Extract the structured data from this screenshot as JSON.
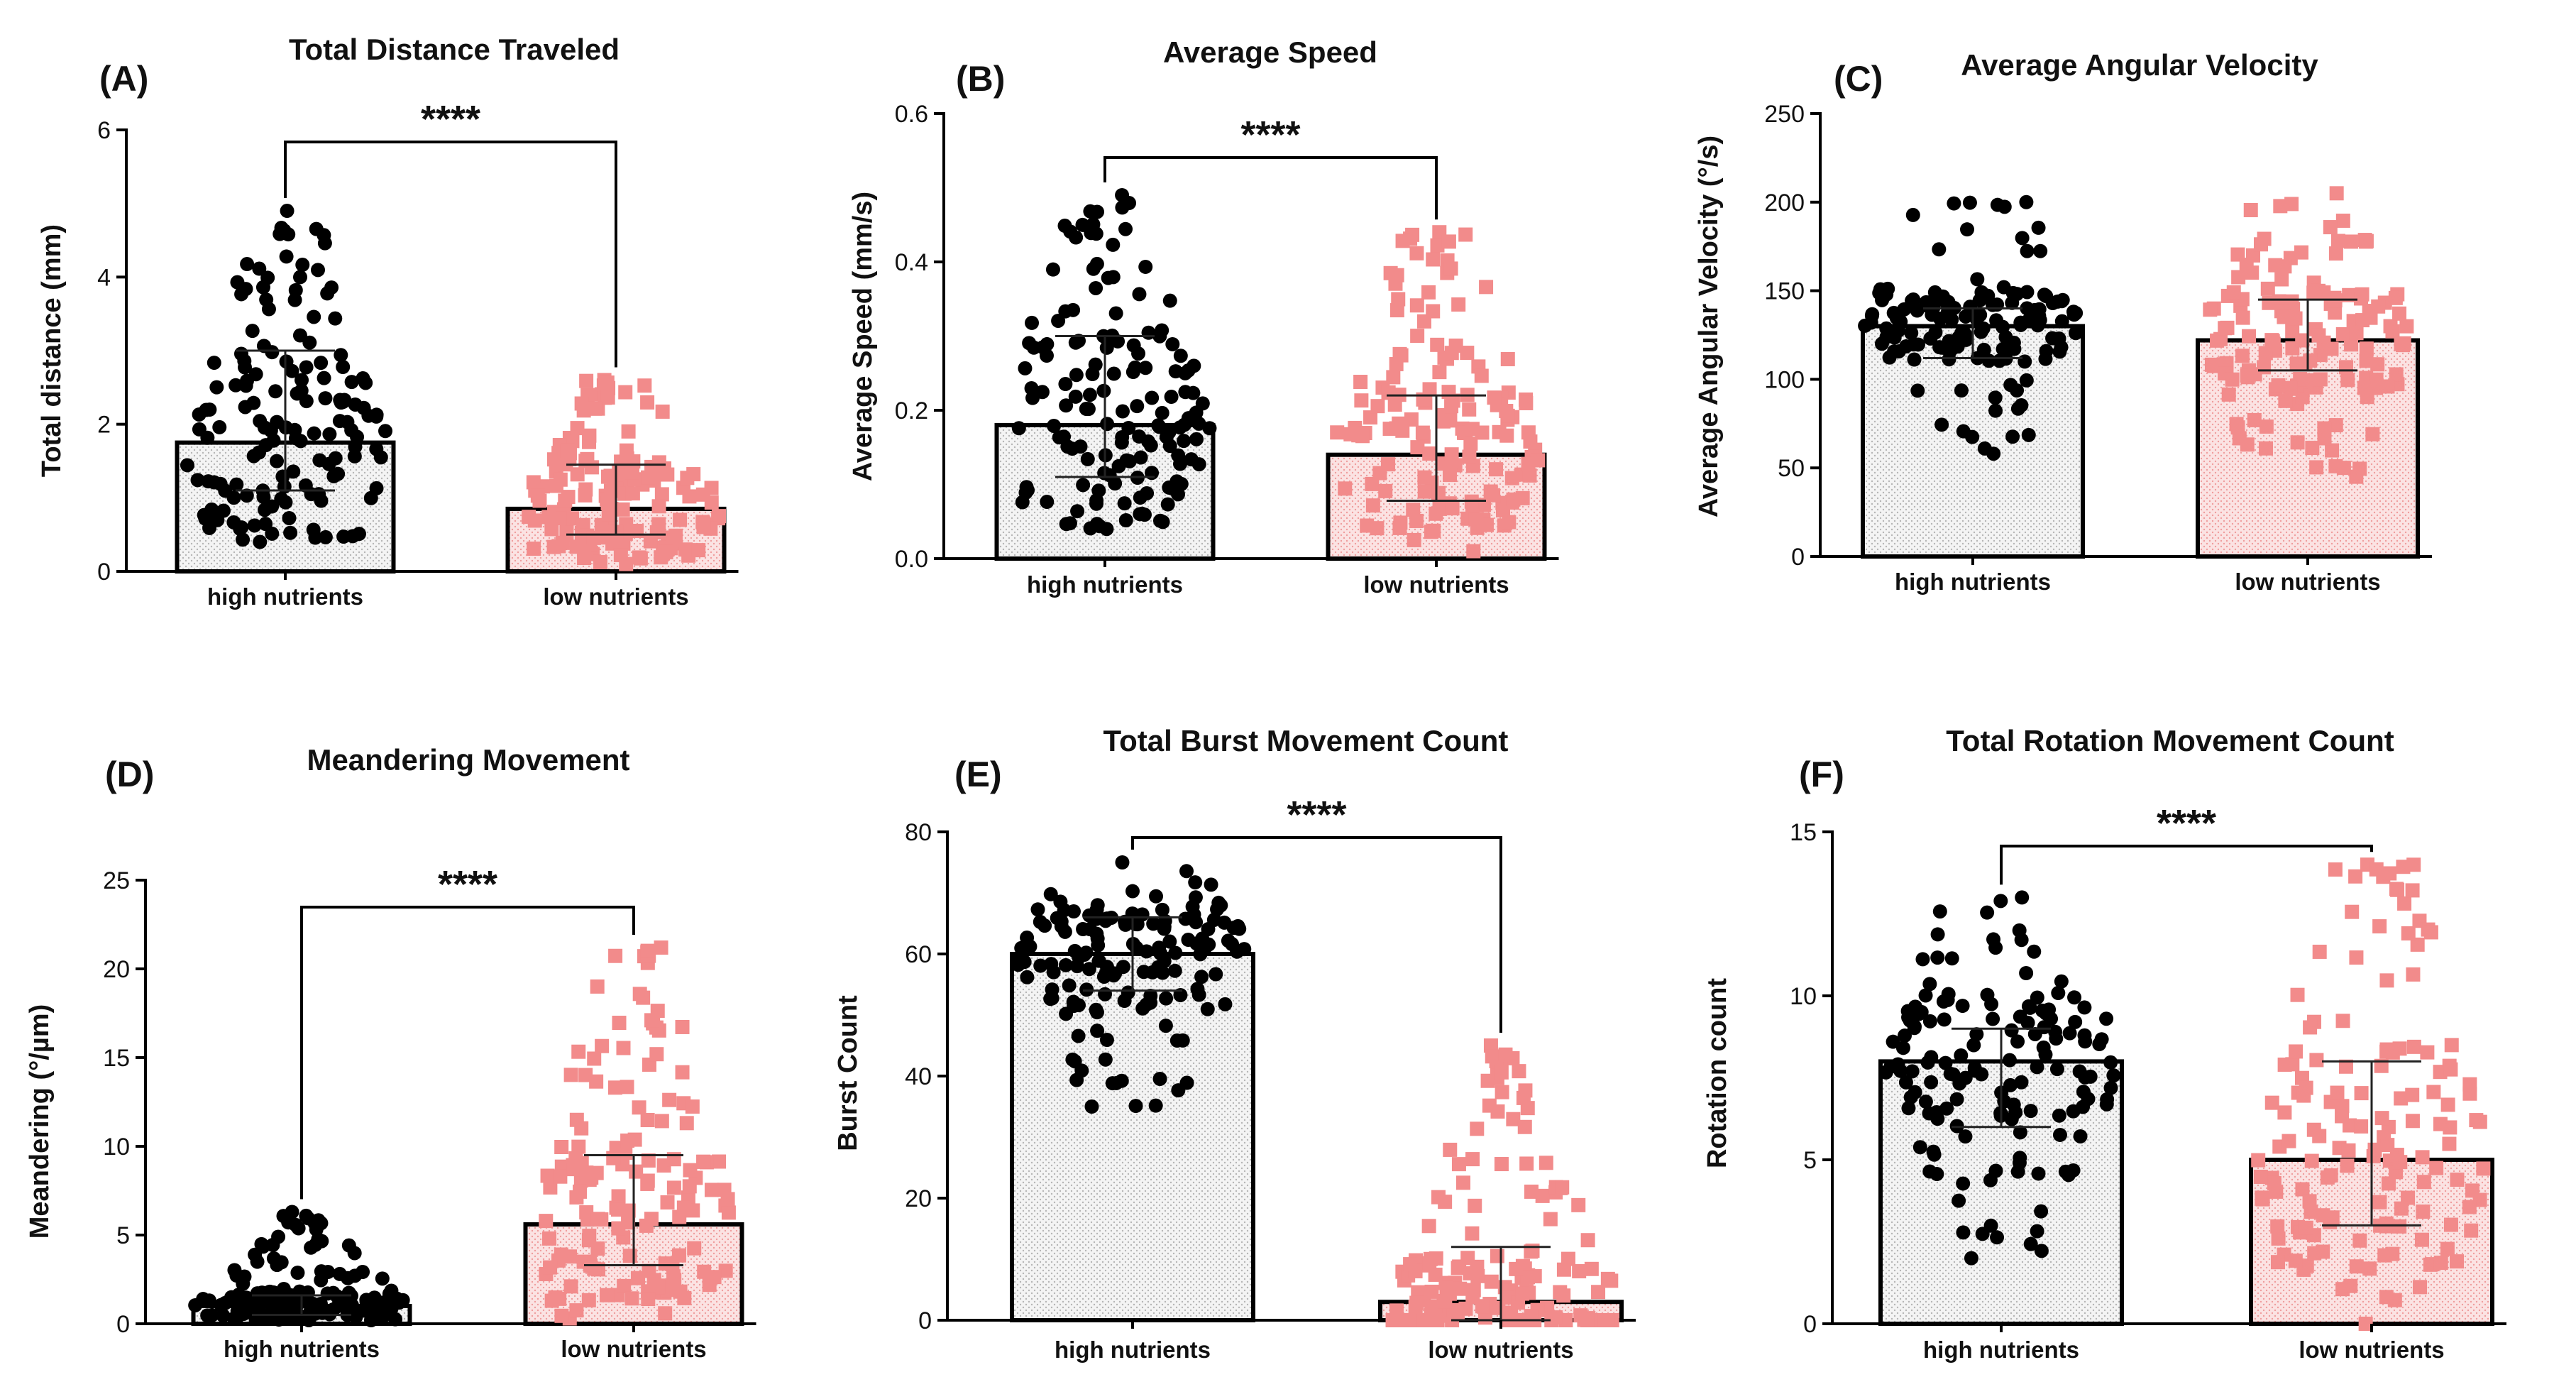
{
  "figure": {
    "description_free": true
  },
  "colors": {
    "high": "#000000",
    "low": "#f28b8b",
    "low_fill": "#f9d2d2",
    "high_fill": "#e8e8e8"
  },
  "chart_data": [
    {
      "type": "bar",
      "letter": "(A)",
      "title": "Total Distance Traveled",
      "ylabel": "Total distance (mm)",
      "categories": [
        "high nutrients",
        "low nutrients"
      ],
      "ylim": [
        0,
        6
      ],
      "yticks": [
        0,
        2,
        4,
        6
      ],
      "tick_labels": [
        "0",
        "2",
        "4",
        "6"
      ],
      "means": [
        1.75,
        0.85
      ],
      "sd_low": [
        1.1,
        0.5
      ],
      "sd_high": [
        3.0,
        1.45
      ],
      "point_range_high": [
        0.4,
        4.9
      ],
      "point_range_low": [
        0.1,
        2.6
      ],
      "significance": "****"
    },
    {
      "type": "bar",
      "letter": "(B)",
      "title": "Average Speed",
      "ylabel": "Average Speed (mm/s)",
      "categories": [
        "high nutrients",
        "low nutrients"
      ],
      "ylim": [
        0,
        0.6
      ],
      "yticks": [
        0,
        0.2,
        0.4,
        0.6
      ],
      "tick_labels": [
        "0.0",
        "0.2",
        "0.4",
        "0.6"
      ],
      "means": [
        0.18,
        0.14
      ],
      "sd_low": [
        0.11,
        0.078
      ],
      "sd_high": [
        0.3,
        0.22
      ],
      "point_range_high": [
        0.04,
        0.49
      ],
      "point_range_low": [
        0.01,
        0.44
      ],
      "significance": "****"
    },
    {
      "type": "bar",
      "letter": "(C)",
      "title": "Average Angular Velocity",
      "ylabel": "Average Angular Velocity (°/s)",
      "categories": [
        "high nutrients",
        "low nutrients"
      ],
      "ylim": [
        0,
        250
      ],
      "yticks": [
        0,
        50,
        100,
        150,
        200,
        250
      ],
      "tick_labels": [
        "0",
        "50",
        "100",
        "150",
        "200",
        "250"
      ],
      "means": [
        130,
        122
      ],
      "sd_low": [
        112,
        105
      ],
      "sd_high": [
        140,
        145
      ],
      "point_range_high": [
        58,
        200
      ],
      "point_range_low": [
        45,
        205
      ],
      "significance": ""
    },
    {
      "type": "bar",
      "letter": "(D)",
      "title": "Meandering Movement",
      "ylabel": "Meandering (°/µm)",
      "categories": [
        "high nutrients",
        "low nutrients"
      ],
      "ylim": [
        0,
        25
      ],
      "yticks": [
        0,
        5,
        10,
        15,
        20,
        25
      ],
      "tick_labels": [
        "0",
        "5",
        "10",
        "15",
        "20",
        "25"
      ],
      "means": [
        1.0,
        5.6
      ],
      "sd_low": [
        0.5,
        3.3
      ],
      "sd_high": [
        1.6,
        9.5
      ],
      "point_range_high": [
        0.2,
        6.3
      ],
      "point_range_low": [
        0.3,
        21.2
      ],
      "significance": "****"
    },
    {
      "type": "bar",
      "letter": "(E)",
      "title": "Total Burst Movement Count",
      "ylabel": "Burst Count",
      "categories": [
        "high nutrients",
        "low nutrients"
      ],
      "ylim": [
        0,
        80
      ],
      "yticks": [
        0,
        20,
        40,
        60,
        80
      ],
      "tick_labels": [
        "0",
        "20",
        "40",
        "60",
        "80"
      ],
      "means": [
        60,
        3
      ],
      "sd_low": [
        54,
        0
      ],
      "sd_high": [
        66,
        12
      ],
      "point_range_high": [
        35,
        75
      ],
      "point_range_low": [
        0,
        45
      ],
      "significance": "****"
    },
    {
      "type": "bar",
      "letter": "(F)",
      "title": "Total Rotation Movement Count",
      "ylabel": "Rotation count",
      "categories": [
        "high nutrients",
        "low nutrients"
      ],
      "ylim": [
        0,
        15
      ],
      "yticks": [
        0,
        5,
        10,
        15
      ],
      "tick_labels": [
        "0",
        "5",
        "10",
        "15"
      ],
      "means": [
        8,
        5
      ],
      "sd_low": [
        6,
        3
      ],
      "sd_high": [
        9,
        8
      ],
      "point_range_high": [
        2,
        13
      ],
      "point_range_low": [
        0,
        14
      ],
      "significance": "****"
    }
  ]
}
